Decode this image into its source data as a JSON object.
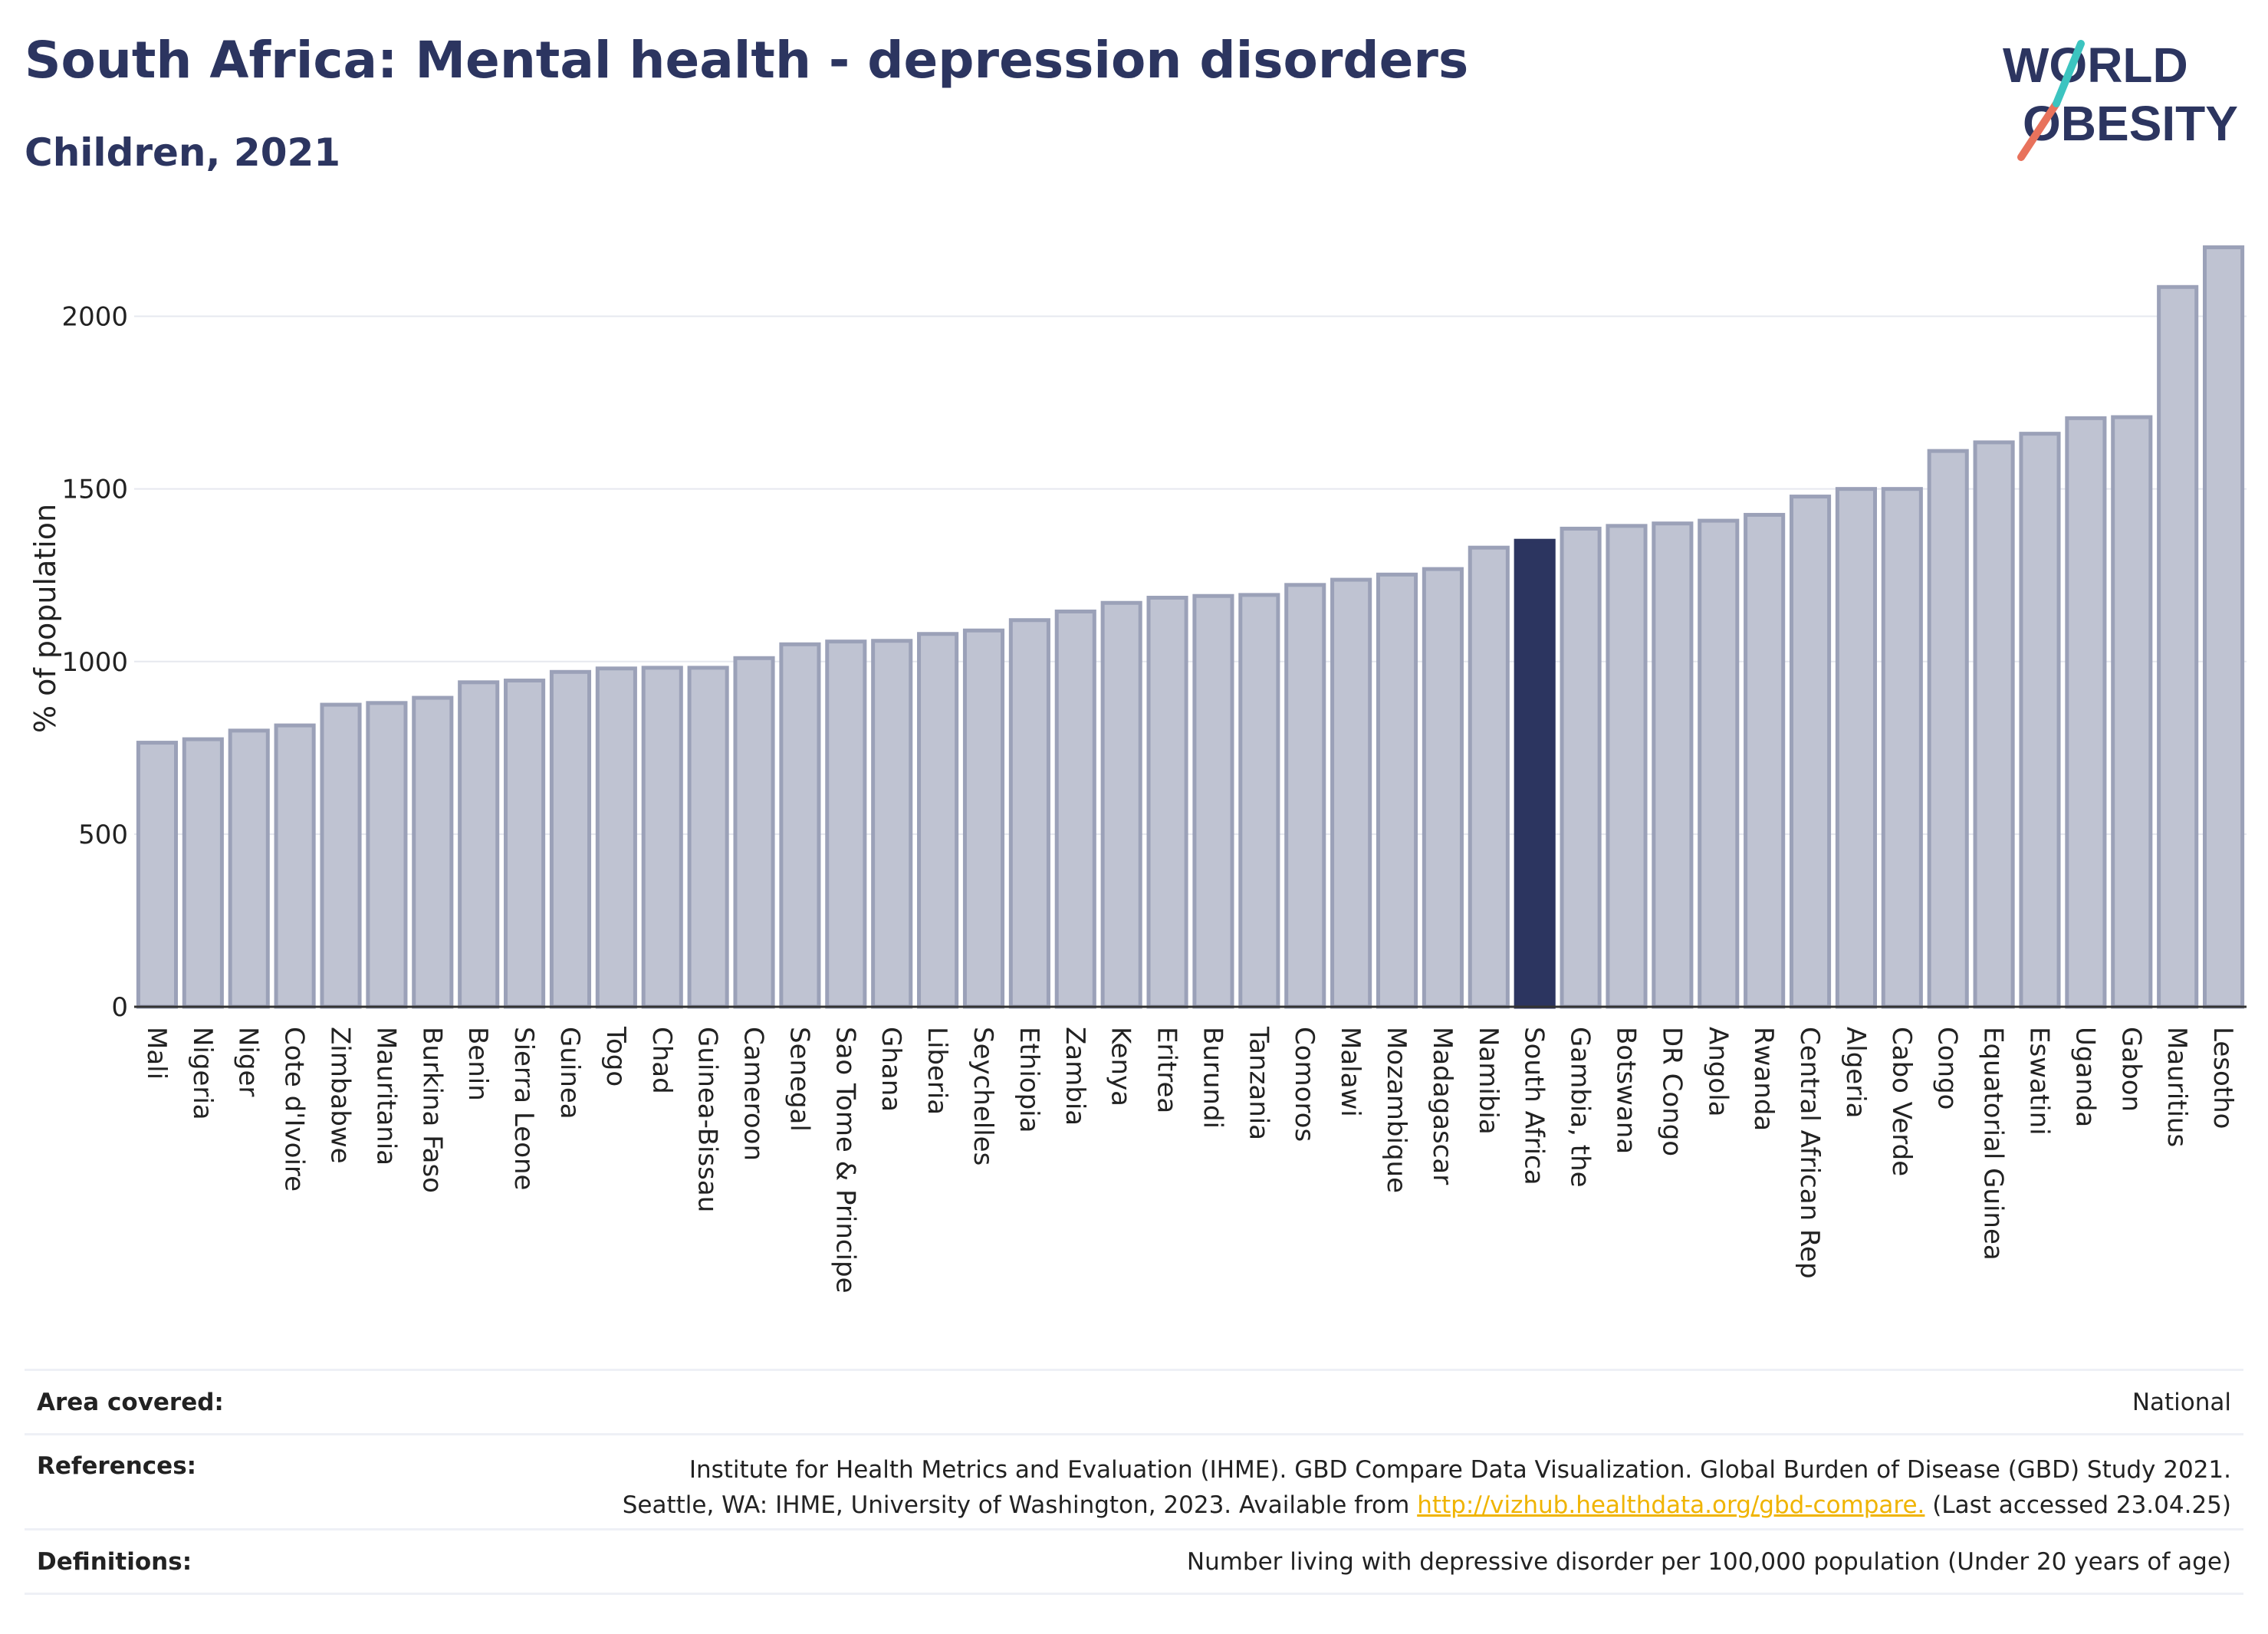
{
  "header": {
    "title": "South Africa: Mental health - depression disorders",
    "subtitle": "Children, 2021"
  },
  "logo": {
    "line1": "WORLD",
    "line2": "OBESITY"
  },
  "chart_data": {
    "type": "bar",
    "ylabel": "% of population",
    "ylim": [
      0,
      2250
    ],
    "yticks": [
      0,
      500,
      1000,
      1500,
      2000
    ],
    "highlight": "South Africa",
    "colors": {
      "bar": "#bfc3d2",
      "bar_border": "#9ba1b8",
      "highlight": "#2c3560",
      "grid": "#e6e8ef"
    },
    "categories": [
      "Mali",
      "Nigeria",
      "Niger",
      "Cote d'Ivoire",
      "Zimbabwe",
      "Mauritania",
      "Burkina Faso",
      "Benin",
      "Sierra Leone",
      "Guinea",
      "Togo",
      "Chad",
      "Guinea-Bissau",
      "Cameroon",
      "Senegal",
      "Sao Tome & Principe",
      "Ghana",
      "Liberia",
      "Seychelles",
      "Ethiopia",
      "Zambia",
      "Kenya",
      "Eritrea",
      "Burundi",
      "Tanzania",
      "Comoros",
      "Malawi",
      "Mozambique",
      "Madagascar",
      "Namibia",
      "South Africa",
      "Gambia, the",
      "Botswana",
      "DR Congo",
      "Angola",
      "Rwanda",
      "Central African Rep",
      "Algeria",
      "Cabo Verde",
      "Congo",
      "Equatorial Guinea",
      "Eswatini",
      "Uganda",
      "Gabon",
      "Mauritius",
      "Lesotho"
    ],
    "values": [
      765,
      775,
      800,
      815,
      875,
      880,
      895,
      940,
      945,
      970,
      980,
      982,
      982,
      1010,
      1050,
      1058,
      1060,
      1080,
      1090,
      1120,
      1145,
      1170,
      1185,
      1190,
      1193,
      1222,
      1237,
      1252,
      1268,
      1330,
      1350,
      1385,
      1393,
      1400,
      1408,
      1425,
      1478,
      1500,
      1500,
      1610,
      1635,
      1660,
      1705,
      1708,
      2085,
      2200
    ]
  },
  "info": {
    "area_label": "Area covered:",
    "area_value": "National",
    "refs_label": "References:",
    "refs_line1": "Institute for Health Metrics and Evaluation (IHME). GBD Compare Data Visualization. Global Burden of Disease (GBD) Study 2021.",
    "refs_line2_pre": "Seattle, WA: IHME, University of Washington, 2023. Available from ",
    "refs_link": "http://vizhub.healthdata.org/gbd-compare.",
    "refs_line2_post": " (Last accessed 23.04.25)",
    "defs_label": "Definitions:",
    "defs_value": "Number living with depressive disorder per 100,000 population (Under 20 years of age)"
  }
}
